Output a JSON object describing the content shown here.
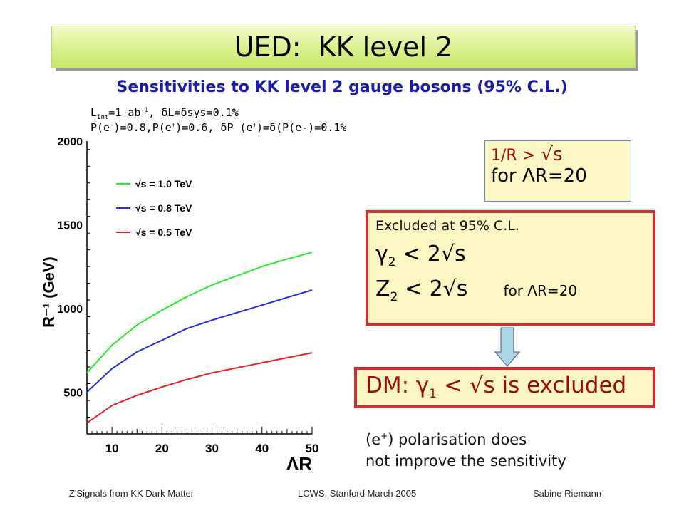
{
  "slide": {
    "title": "UED:  KK level 2",
    "subtitle": "Sensitivities to KK level 2 gauge bosons (95% C.L.)",
    "params_line1_a": "L",
    "params_line1_sub": "int",
    "params_line1_b": "=1 ab",
    "params_line1_sup": "-1",
    "params_line1_c": ", δL=δsys=0.1%",
    "params_line2_a": "P(e",
    "params_line2_sup1": "-",
    "params_line2_b": ")=0.8,P(e",
    "params_line2_sup2": "+",
    "params_line2_c": ")=0.6, δP (e",
    "params_line2_sup3": "+",
    "params_line2_d": ")=δ(P(e-)=0.1%",
    "condition_line1_a": "1/R >",
    "condition_line1_b": "  √s",
    "condition_line2": "for ΛR=20",
    "excluded_header": "Excluded at 95% C.L.",
    "excluded_gamma_sym": "γ",
    "excluded_gamma_sub": "2",
    "excluded_gamma_rest": " < 2√s",
    "excluded_z_sym": "Z",
    "excluded_z_sub": "2",
    "excluded_z_rest": " < 2√s",
    "excluded_for": "for ΛR=20",
    "dm_a": "DM: γ",
    "dm_sub": "1",
    "dm_b": " < √s is excluded",
    "note_a": "(e",
    "note_sup": "+",
    "note_b": ") polarisation does",
    "note_line2": "not improve the sensitivity",
    "footer_left": "Z'Signals from KK Dark Matter",
    "footer_center": "LCWS,  Stanford March  2005",
    "footer_right": "Sabine Riemann",
    "arrow_color": "#a8d8e8"
  },
  "chart_data": {
    "type": "line",
    "xlabel": "ΛR",
    "ylabel": "R⁻¹ (GeV)",
    "xlim": [
      5,
      50
    ],
    "ylim": [
      250,
      2000
    ],
    "xticks": [
      10,
      20,
      30,
      40,
      50
    ],
    "yticks": [
      500,
      1000,
      1500,
      2000
    ],
    "grid": false,
    "legend_position": "top-left",
    "series": [
      {
        "name": "√s = 1.0 TeV",
        "color": "#22ee22",
        "x": [
          5,
          10,
          15,
          20,
          25,
          30,
          35,
          40,
          45,
          50
        ],
        "y": [
          615,
          780,
          900,
          990,
          1070,
          1140,
          1195,
          1250,
          1295,
          1335
        ]
      },
      {
        "name": "√s = 0.8 TeV",
        "color": "#1c2ee6",
        "x": [
          5,
          10,
          15,
          20,
          25,
          30,
          35,
          40,
          45,
          50
        ],
        "y": [
          500,
          640,
          740,
          810,
          880,
          930,
          975,
          1020,
          1065,
          1110
        ]
      },
      {
        "name": "√s = 0.5 TeV",
        "color": "#e62020",
        "x": [
          5,
          10,
          15,
          20,
          25,
          30,
          35,
          40,
          45,
          50
        ],
        "y": [
          315,
          420,
          480,
          530,
          575,
          615,
          645,
          675,
          705,
          735
        ]
      }
    ]
  }
}
